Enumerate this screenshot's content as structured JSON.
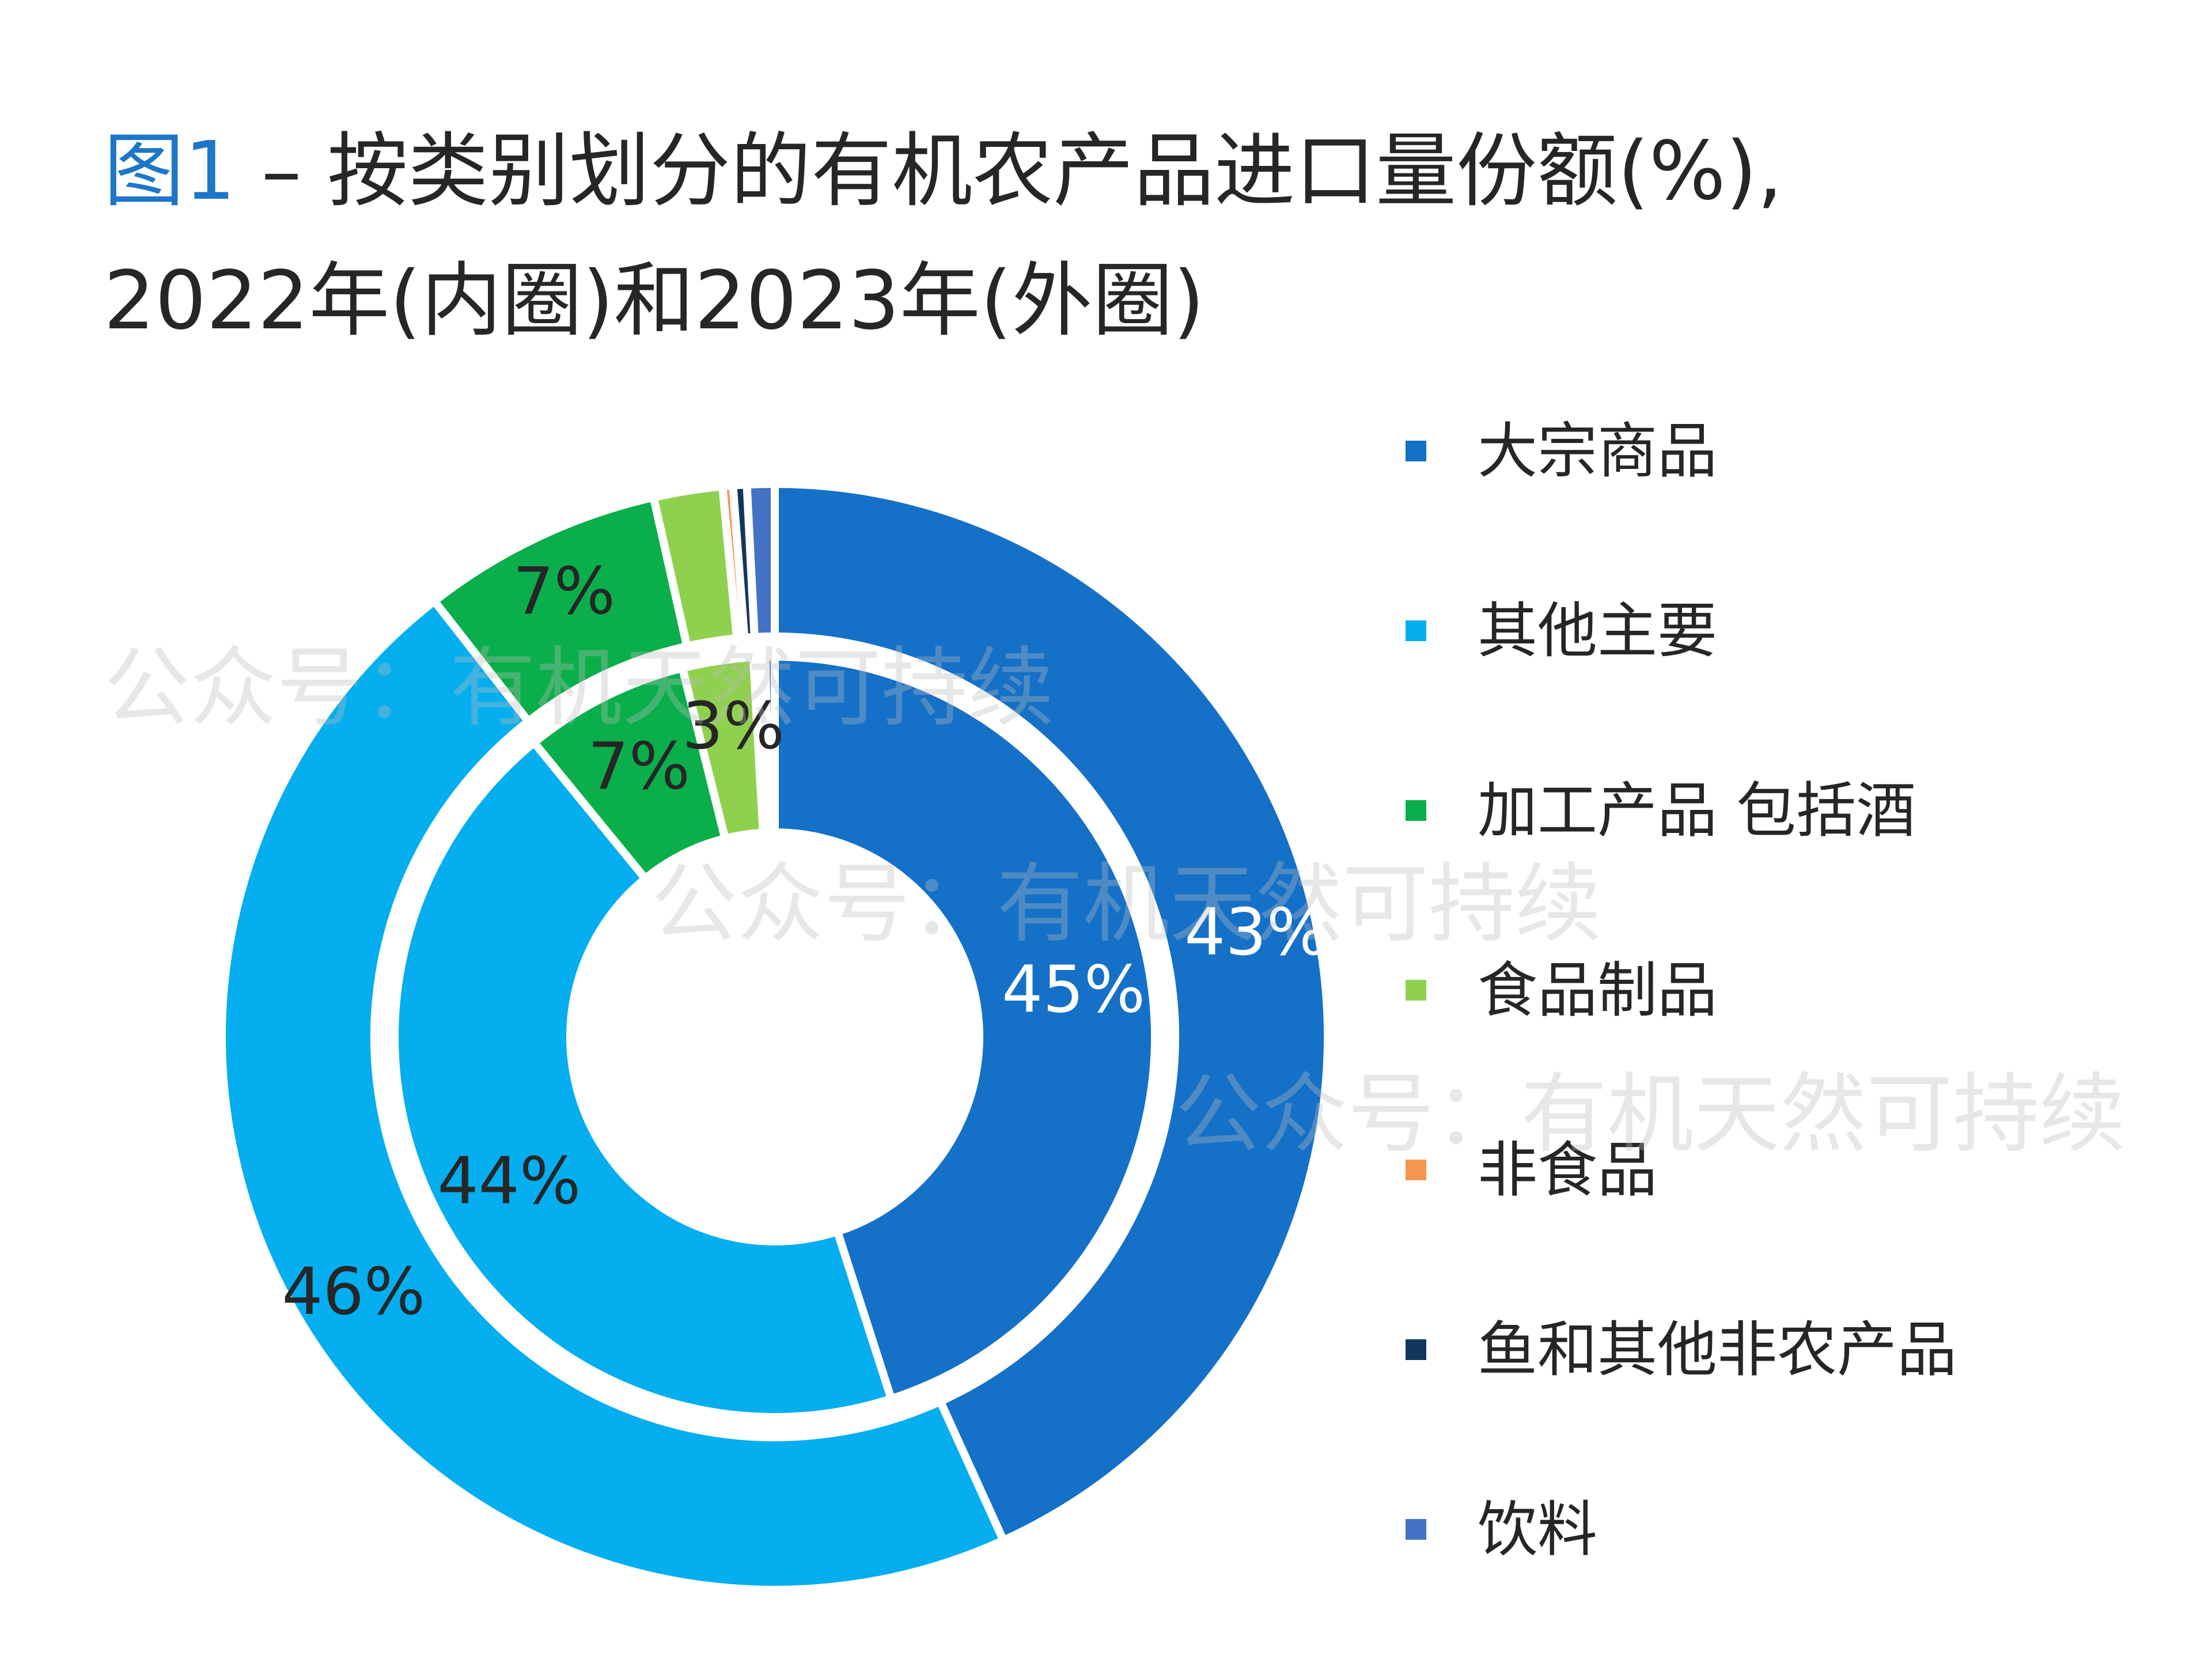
{
  "title": {
    "figure_label": "图1",
    "text_line1": " – 按类别划分的有机农产品进口量份额(%),",
    "text_line2": "2022年(内圈)和2023年(外圈)"
  },
  "watermark_text": "公众号：有机天然可持续",
  "chart_data": {
    "type": "pie",
    "variant": "nested-donut",
    "title": "图1 – 按类别划分的有机农产品进口量份额(%), 2022年(内圈)和2023年(外圈)",
    "categories": [
      "大宗商品",
      "其他主要",
      "加工产品 包括酒",
      "食品制品",
      "非食品",
      "鱼和其他非农产品",
      "饮料"
    ],
    "colors": [
      "#1570c8",
      "#04aeef",
      "#0aaf4b",
      "#8fd14f",
      "#f5964f",
      "#12375e",
      "#4472c4"
    ],
    "legend_position": "right",
    "series": [
      {
        "name": "2022年(内圈)",
        "ring": "inner",
        "values": [
          45,
          44,
          7,
          3,
          0.3,
          0.2,
          0.4
        ],
        "labels": [
          "45%",
          "44%",
          "7%",
          "3%",
          "",
          "",
          ""
        ]
      },
      {
        "name": "2023年(外圈)",
        "ring": "outer",
        "values": [
          43,
          46,
          7,
          2,
          0.3,
          0.4,
          0.8
        ],
        "labels": [
          "43%",
          "46%",
          "7%",
          "",
          "",
          "",
          ""
        ]
      }
    ]
  }
}
